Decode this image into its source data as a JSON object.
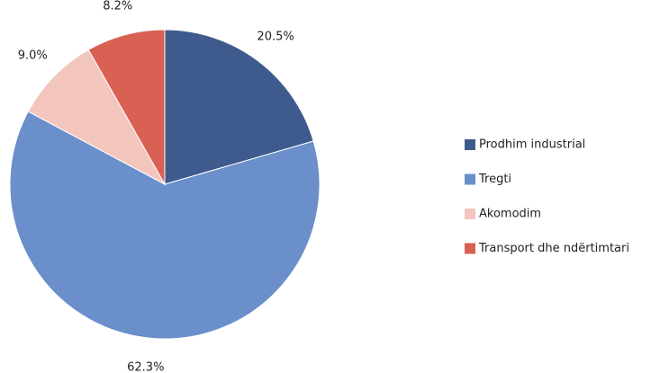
{
  "chart_data": {
    "type": "pie",
    "categories": [
      "Prodhim industrial",
      "Tregti",
      "Akomodim",
      "Transport dhe ndërtimtari"
    ],
    "values": [
      20.5,
      62.3,
      9.0,
      8.2
    ],
    "value_labels": [
      "20.5%",
      "62.3%",
      "9.0%",
      "8.2%"
    ],
    "colors": [
      "#3f5a8c",
      "#6a8fcb",
      "#f2c6bc",
      "#d96153"
    ],
    "legend": "right"
  }
}
